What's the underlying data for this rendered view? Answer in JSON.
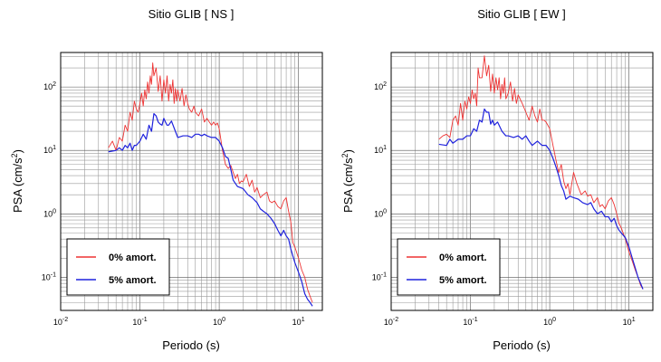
{
  "chart_data": [
    {
      "type": "line",
      "title": "Sitio GLIB [ NS ]",
      "xlabel": "Periodo (s)",
      "ylabel": "PSA (cm/s²)",
      "xscale": "log",
      "yscale": "log",
      "xlim": [
        0.01,
        20
      ],
      "ylim": [
        0.03,
        350
      ],
      "grid": true,
      "legend_position": "bottom-left",
      "xticks": [
        {
          "value": 0.01,
          "base": "10",
          "exp": "-2"
        },
        {
          "value": 0.1,
          "base": "10",
          "exp": "-1"
        },
        {
          "value": 1,
          "base": "10",
          "exp": "0"
        },
        {
          "value": 10,
          "base": "10",
          "exp": "1"
        }
      ],
      "yticks": [
        {
          "value": 0.1,
          "base": "10",
          "exp": "-1"
        },
        {
          "value": 1,
          "base": "10",
          "exp": "0"
        },
        {
          "value": 10,
          "base": "10",
          "exp": "1"
        },
        {
          "value": 100,
          "base": "10",
          "exp": "2"
        }
      ],
      "series": [
        {
          "name": "0% amort.",
          "color": "#ee3333",
          "x": [
            0.04,
            0.045,
            0.05,
            0.055,
            0.06,
            0.065,
            0.07,
            0.075,
            0.08,
            0.085,
            0.09,
            0.095,
            0.1,
            0.105,
            0.11,
            0.115,
            0.12,
            0.125,
            0.13,
            0.135,
            0.14,
            0.145,
            0.15,
            0.16,
            0.17,
            0.18,
            0.19,
            0.2,
            0.21,
            0.22,
            0.23,
            0.24,
            0.25,
            0.26,
            0.27,
            0.28,
            0.29,
            0.3,
            0.32,
            0.34,
            0.36,
            0.38,
            0.4,
            0.42,
            0.45,
            0.48,
            0.5,
            0.55,
            0.6,
            0.65,
            0.7,
            0.75,
            0.8,
            0.85,
            0.9,
            0.95,
            1.0,
            1.1,
            1.2,
            1.3,
            1.4,
            1.5,
            1.6,
            1.7,
            1.8,
            1.9,
            2.0,
            2.2,
            2.4,
            2.6,
            2.8,
            3.0,
            3.3,
            3.6,
            4.0,
            4.3,
            4.6,
            5.0,
            5.5,
            6.0,
            6.5,
            7.0,
            7.5,
            8.0,
            8.5,
            9.0,
            10.0,
            11.0,
            12.0,
            13.0,
            14.0,
            15.0
          ],
          "y": [
            11,
            14,
            10,
            16,
            14,
            25,
            20,
            40,
            30,
            60,
            45,
            40,
            55,
            80,
            50,
            90,
            65,
            120,
            80,
            150,
            110,
            240,
            150,
            200,
            85,
            150,
            60,
            130,
            80,
            150,
            60,
            110,
            80,
            130,
            55,
            95,
            60,
            90,
            60,
            95,
            50,
            75,
            55,
            45,
            40,
            50,
            40,
            35,
            45,
            28,
            32,
            28,
            25,
            28,
            25,
            27,
            22,
            10,
            6,
            5.2,
            5.8,
            4.5,
            3.6,
            4.2,
            3.0,
            3.3,
            3.2,
            4.2,
            2.7,
            3.4,
            2.2,
            2.6,
            1.8,
            2.0,
            2.2,
            1.6,
            1.5,
            1.6,
            1.3,
            1.2,
            1.6,
            1.8,
            1.1,
            0.75,
            0.35,
            0.3,
            0.2,
            0.13,
            0.1,
            0.065,
            0.05,
            0.04
          ]
        },
        {
          "name": "5% amort.",
          "color": "#1f22dd",
          "x": [
            0.04,
            0.05,
            0.055,
            0.06,
            0.065,
            0.07,
            0.075,
            0.08,
            0.085,
            0.09,
            0.1,
            0.11,
            0.12,
            0.13,
            0.14,
            0.15,
            0.16,
            0.17,
            0.18,
            0.19,
            0.2,
            0.21,
            0.22,
            0.23,
            0.25,
            0.28,
            0.3,
            0.35,
            0.4,
            0.45,
            0.5,
            0.55,
            0.6,
            0.65,
            0.7,
            0.8,
            0.9,
            1.0,
            1.1,
            1.2,
            1.3,
            1.4,
            1.5,
            1.7,
            2.0,
            2.3,
            2.6,
            3.0,
            3.3,
            3.6,
            4.0,
            4.5,
            5.0,
            5.5,
            6.0,
            6.5,
            7.0,
            7.5,
            8.0,
            9.0,
            10.0,
            11.0,
            12.0,
            13.0,
            14.0,
            15.0
          ],
          "y": [
            9.5,
            10,
            11,
            10,
            12,
            11,
            13,
            10,
            12,
            12,
            14,
            18,
            15,
            25,
            20,
            38,
            35,
            28,
            26,
            25,
            32,
            28,
            25,
            25,
            29,
            20,
            16,
            17,
            17,
            16,
            18,
            18,
            17,
            18,
            17,
            16,
            16,
            14,
            11,
            8,
            7.5,
            5,
            3.4,
            2.7,
            2.5,
            2.0,
            1.8,
            1.5,
            1.2,
            1.1,
            1.0,
            0.85,
            0.7,
            0.55,
            0.45,
            0.55,
            0.45,
            0.4,
            0.28,
            0.17,
            0.12,
            0.085,
            0.055,
            0.045,
            0.04,
            0.035
          ]
        }
      ]
    },
    {
      "type": "line",
      "title": "Sitio GLIB [ EW ]",
      "xlabel": "Periodo (s)",
      "ylabel": "PSA (cm/s²)",
      "xscale": "log",
      "yscale": "log",
      "xlim": [
        0.01,
        20
      ],
      "ylim": [
        0.03,
        350
      ],
      "grid": true,
      "legend_position": "bottom-left",
      "xticks": [
        {
          "value": 0.01,
          "base": "10",
          "exp": "-2"
        },
        {
          "value": 0.1,
          "base": "10",
          "exp": "-1"
        },
        {
          "value": 1,
          "base": "10",
          "exp": "0"
        },
        {
          "value": 10,
          "base": "10",
          "exp": "1"
        }
      ],
      "yticks": [
        {
          "value": 0.1,
          "base": "10",
          "exp": "-1"
        },
        {
          "value": 1,
          "base": "10",
          "exp": "0"
        },
        {
          "value": 10,
          "base": "10",
          "exp": "1"
        },
        {
          "value": 100,
          "base": "10",
          "exp": "2"
        }
      ],
      "series": [
        {
          "name": "0% amort.",
          "color": "#ee3333",
          "x": [
            0.04,
            0.045,
            0.05,
            0.055,
            0.06,
            0.065,
            0.07,
            0.075,
            0.08,
            0.085,
            0.09,
            0.095,
            0.1,
            0.105,
            0.11,
            0.115,
            0.12,
            0.125,
            0.13,
            0.14,
            0.15,
            0.16,
            0.17,
            0.18,
            0.19,
            0.2,
            0.21,
            0.22,
            0.23,
            0.24,
            0.25,
            0.26,
            0.27,
            0.28,
            0.3,
            0.32,
            0.34,
            0.36,
            0.38,
            0.4,
            0.45,
            0.5,
            0.55,
            0.6,
            0.65,
            0.7,
            0.75,
            0.8,
            0.85,
            0.9,
            1.0,
            1.1,
            1.2,
            1.3,
            1.4,
            1.5,
            1.6,
            1.7,
            1.8,
            2.0,
            2.2,
            2.5,
            2.8,
            3.0,
            3.3,
            3.6,
            4.0,
            4.3,
            4.6,
            5.0,
            5.5,
            6.0,
            6.5,
            7.0,
            7.5,
            8.0,
            9.0,
            10.0,
            11.0,
            12.0,
            13.0,
            14.0,
            15.0
          ],
          "y": [
            15,
            17,
            18,
            16,
            30,
            35,
            25,
            55,
            30,
            60,
            45,
            70,
            55,
            90,
            65,
            80,
            50,
            200,
            140,
            140,
            310,
            150,
            220,
            85,
            160,
            80,
            140,
            90,
            140,
            65,
            110,
            80,
            140,
            65,
            80,
            120,
            60,
            95,
            55,
            75,
            55,
            40,
            30,
            50,
            35,
            28,
            45,
            30,
            30,
            28,
            22,
            12,
            7,
            4.5,
            6,
            3.3,
            2.5,
            3.0,
            2.0,
            4.5,
            3.0,
            2.0,
            2.3,
            1.9,
            2.0,
            1.5,
            1.8,
            1.3,
            1.4,
            1.2,
            1.6,
            1.8,
            1.4,
            1.0,
            0.7,
            0.6,
            0.4,
            0.25,
            0.18,
            0.13,
            0.1,
            0.075,
            0.065
          ]
        },
        {
          "name": "5% amort.",
          "color": "#1f22dd",
          "x": [
            0.04,
            0.05,
            0.055,
            0.06,
            0.07,
            0.08,
            0.09,
            0.1,
            0.11,
            0.12,
            0.13,
            0.14,
            0.15,
            0.16,
            0.17,
            0.18,
            0.19,
            0.2,
            0.22,
            0.25,
            0.28,
            0.3,
            0.35,
            0.4,
            0.45,
            0.5,
            0.55,
            0.6,
            0.65,
            0.7,
            0.8,
            0.9,
            1.0,
            1.1,
            1.2,
            1.3,
            1.4,
            1.5,
            1.6,
            1.8,
            2.0,
            2.3,
            2.6,
            3.0,
            3.3,
            3.6,
            4.0,
            4.5,
            5.0,
            5.5,
            6.0,
            6.5,
            7.0,
            7.5,
            8.0,
            9.0,
            10.0,
            11.0,
            12.0,
            13.0,
            14.0,
            15.0
          ],
          "y": [
            12.5,
            12,
            15,
            13,
            15,
            15,
            17,
            17,
            22,
            20,
            30,
            28,
            45,
            40,
            40,
            26,
            30,
            25,
            28,
            20,
            17,
            17,
            16,
            17,
            15,
            17,
            14,
            12,
            13,
            14,
            12,
            12,
            10,
            7.5,
            5.5,
            4.0,
            2.8,
            2.3,
            1.7,
            1.9,
            1.8,
            1.7,
            1.5,
            1.4,
            1.5,
            1.2,
            1.0,
            1.1,
            0.9,
            0.9,
            0.75,
            0.85,
            0.65,
            0.55,
            0.5,
            0.42,
            0.3,
            0.2,
            0.14,
            0.1,
            0.08,
            0.065
          ]
        }
      ]
    }
  ]
}
